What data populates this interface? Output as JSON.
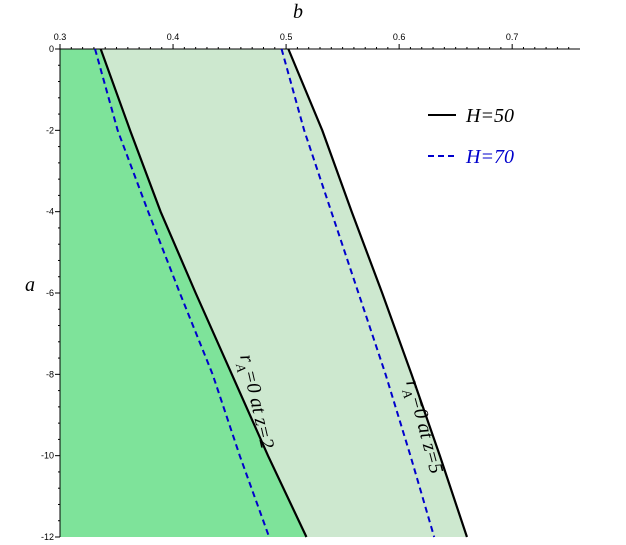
{
  "chart_data": {
    "type": "line",
    "xlabel": "b",
    "ylabel": "a",
    "xlim": [
      0.3,
      0.76
    ],
    "ylim": [
      -12,
      0
    ],
    "xticks": [
      0.3,
      0.4,
      0.5,
      0.6,
      0.7
    ],
    "yticks": [
      0,
      -2,
      -4,
      -6,
      -8,
      -10,
      -12
    ],
    "a": [
      0,
      -2,
      -4,
      -6,
      -8,
      -10,
      -12
    ],
    "series": [
      {
        "name": "H=50",
        "color": "#000000",
        "dashed": false,
        "curves": [
          [
            0.336,
            0.362,
            0.389,
            0.42,
            0.452,
            0.484,
            0.518
          ],
          [
            0.502,
            0.532,
            0.558,
            0.585,
            0.611,
            0.636,
            0.66
          ]
        ]
      },
      {
        "name": "H=70",
        "color": "#0000cc",
        "dashed": true,
        "curves": [
          [
            0.331,
            0.351,
            0.378,
            0.406,
            0.435,
            0.459,
            0.485
          ],
          [
            0.496,
            0.516,
            0.54,
            0.564,
            0.588,
            0.61,
            0.631
          ]
        ]
      }
    ],
    "region_colors": [
      "#7ee39a",
      "#cde8cf"
    ],
    "annotations": [
      {
        "parts": [
          "r",
          "A",
          "=0 at z=2"
        ]
      },
      {
        "parts": [
          "r",
          "A",
          "=0 at z=5"
        ]
      }
    ],
    "legend": "upper right"
  }
}
